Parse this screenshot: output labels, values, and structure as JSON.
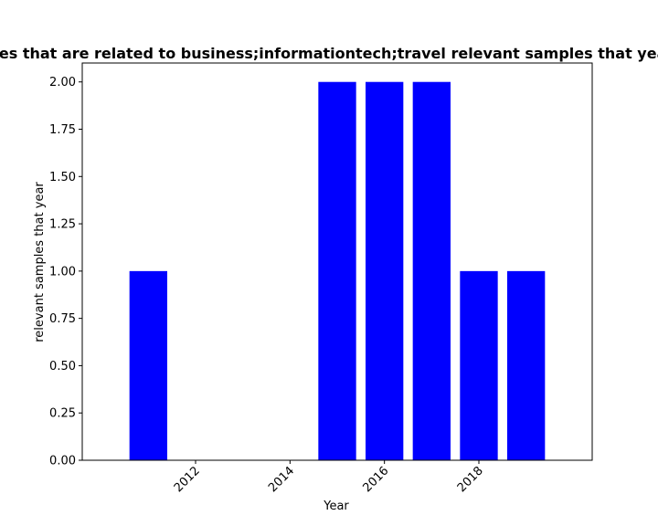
{
  "chart_data": {
    "type": "bar",
    "title": "Number of samples that are related to business;informationtech;travel relevant samples that year in private sector",
    "xlabel": "Year",
    "ylabel": "relevant samples that year",
    "x": [
      2011,
      2012,
      2013,
      2014,
      2015,
      2016,
      2017,
      2018,
      2019
    ],
    "values": [
      1,
      0,
      0,
      0,
      2,
      2,
      2,
      1,
      1
    ],
    "xlim": [
      2009.6,
      2020.4
    ],
    "ylim": [
      0,
      2.1
    ],
    "xticks": [
      "2012",
      "2014",
      "2016",
      "2018"
    ],
    "yticks": [
      "0.00",
      "0.25",
      "0.50",
      "0.75",
      "1.00",
      "1.25",
      "1.50",
      "1.75",
      "2.00"
    ],
    "bar_color": "#0000ff",
    "grid": false,
    "legend": "none"
  }
}
